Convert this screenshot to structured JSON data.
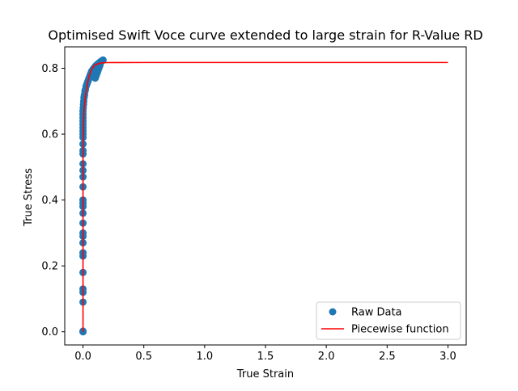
{
  "chart_data": {
    "type": "scatter",
    "title": "Optimised Swift Voce curve extended to large strain for R-Value RD",
    "xlabel": "True Strain",
    "ylabel": "True Stress",
    "xlim": [
      -0.15,
      3.15
    ],
    "ylim": [
      -0.04,
      0.865
    ],
    "xticks": [
      0.0,
      0.5,
      1.0,
      1.5,
      2.0,
      2.5,
      3.0
    ],
    "xtick_labels": [
      "0.0",
      "0.5",
      "1.0",
      "1.5",
      "2.0",
      "2.5",
      "3.0"
    ],
    "yticks": [
      0.0,
      0.2,
      0.4,
      0.6,
      0.8
    ],
    "ytick_labels": [
      "0.0",
      "0.2",
      "0.4",
      "0.6",
      "0.8"
    ],
    "grid": false,
    "legend_position": "lower-right",
    "series": [
      {
        "name": "Raw Data",
        "kind": "scatter",
        "color": "#1f77b4",
        "x": [
          0.0,
          0.0,
          0.0,
          0.0,
          0.0,
          0.0,
          0.0,
          0.0,
          0.0,
          0.0,
          0.0,
          0.0,
          0.0,
          0.0,
          0.0,
          0.0,
          0.0,
          0.0,
          0.0,
          0.0,
          0.0,
          0.0,
          0.0,
          0.0,
          0.0,
          0.0,
          0.0,
          0.0,
          0.0,
          0.0,
          0.0,
          0.0,
          0.002,
          0.004,
          0.006,
          0.008,
          0.01,
          0.013,
          0.016,
          0.02,
          0.025,
          0.03,
          0.035,
          0.04,
          0.045,
          0.05,
          0.055,
          0.06,
          0.065,
          0.07,
          0.075,
          0.08,
          0.085,
          0.09,
          0.095,
          0.1,
          0.105,
          0.11,
          0.115,
          0.12,
          0.125,
          0.13,
          0.135,
          0.14,
          0.145,
          0.15,
          0.155,
          0.16,
          0.165,
          0.1,
          0.105,
          0.11,
          0.115,
          0.12,
          0.125,
          0.13,
          0.135,
          0.14
        ],
        "y": [
          0.0,
          0.002,
          0.09,
          0.12,
          0.13,
          0.18,
          0.23,
          0.24,
          0.27,
          0.29,
          0.3,
          0.33,
          0.36,
          0.38,
          0.39,
          0.4,
          0.44,
          0.47,
          0.49,
          0.51,
          0.54,
          0.55,
          0.57,
          0.59,
          0.6,
          0.61,
          0.62,
          0.63,
          0.64,
          0.65,
          0.66,
          0.67,
          0.68,
          0.69,
          0.7,
          0.71,
          0.715,
          0.72,
          0.73,
          0.735,
          0.745,
          0.75,
          0.755,
          0.76,
          0.765,
          0.77,
          0.775,
          0.78,
          0.785,
          0.79,
          0.792,
          0.795,
          0.798,
          0.8,
          0.802,
          0.805,
          0.807,
          0.809,
          0.81,
          0.812,
          0.814,
          0.815,
          0.817,
          0.818,
          0.82,
          0.821,
          0.822,
          0.824,
          0.825,
          0.77,
          0.775,
          0.78,
          0.785,
          0.79,
          0.795,
          0.8,
          0.805,
          0.81
        ]
      },
      {
        "name": "Piecewise function",
        "kind": "line",
        "color": "#ff0000",
        "x": [
          0.0,
          0.0,
          0.005,
          0.01,
          0.02,
          0.03,
          0.04,
          0.05,
          0.06,
          0.07,
          0.08,
          0.09,
          0.1,
          0.12,
          0.14,
          0.16,
          0.18,
          0.2,
          0.25,
          0.3,
          0.5,
          1.0,
          1.5,
          2.0,
          2.5,
          3.0
        ],
        "y": [
          0.0,
          0.56,
          0.64,
          0.68,
          0.715,
          0.74,
          0.76,
          0.775,
          0.787,
          0.796,
          0.802,
          0.807,
          0.81,
          0.813,
          0.815,
          0.8165,
          0.817,
          0.8172,
          0.8173,
          0.8174,
          0.8175,
          0.8175,
          0.8175,
          0.8175,
          0.8175,
          0.8175
        ]
      }
    ]
  }
}
